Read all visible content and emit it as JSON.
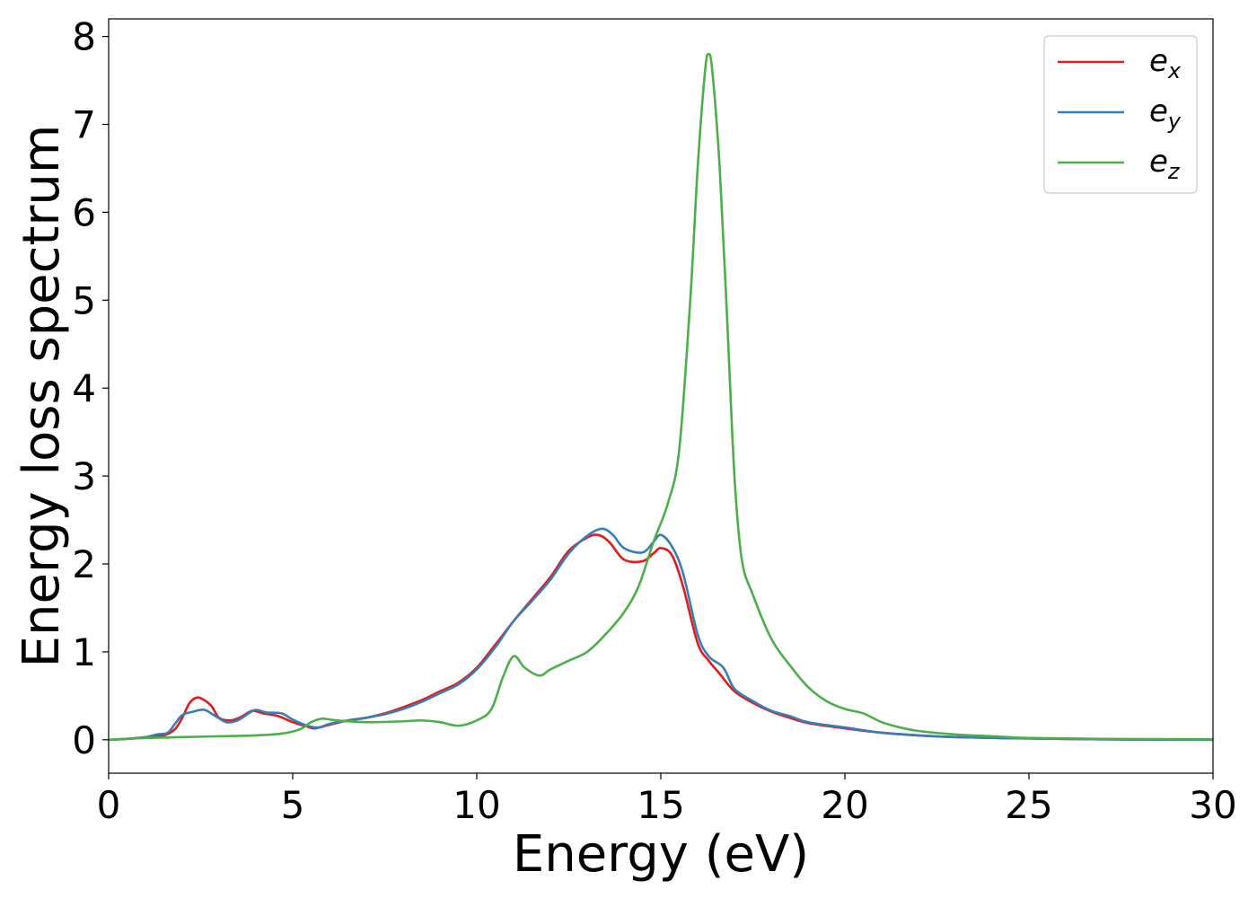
{
  "chart_data": {
    "type": "line",
    "xlabel": "Energy (eV)",
    "ylabel": "Energy loss spectrum",
    "xlim": [
      0,
      30
    ],
    "ylim": [
      -0.38,
      8.2
    ],
    "xticks": [
      0,
      5,
      10,
      15,
      20,
      25,
      30
    ],
    "xtick_labels": [
      "0",
      "5",
      "10",
      "15",
      "20",
      "25",
      "30"
    ],
    "yticks": [
      0,
      1,
      2,
      3,
      4,
      5,
      6,
      7,
      8
    ],
    "ytick_labels": [
      "0",
      "1",
      "2",
      "3",
      "4",
      "5",
      "6",
      "7",
      "8"
    ],
    "grid": false,
    "legend_position": "top-right",
    "series": [
      {
        "name": "e_x",
        "legend_base": "e",
        "legend_sub": "x",
        "color": "#e41a1c",
        "points": [
          [
            0,
            0.0
          ],
          [
            0.5,
            0.01
          ],
          [
            1.0,
            0.03
          ],
          [
            1.5,
            0.05
          ],
          [
            1.8,
            0.12
          ],
          [
            2.0,
            0.25
          ],
          [
            2.2,
            0.42
          ],
          [
            2.4,
            0.48
          ],
          [
            2.6,
            0.45
          ],
          [
            2.8,
            0.38
          ],
          [
            3.0,
            0.25
          ],
          [
            3.3,
            0.22
          ],
          [
            3.6,
            0.26
          ],
          [
            3.9,
            0.33
          ],
          [
            4.2,
            0.3
          ],
          [
            4.6,
            0.27
          ],
          [
            5.0,
            0.2
          ],
          [
            5.4,
            0.15
          ],
          [
            5.6,
            0.13
          ],
          [
            6.0,
            0.17
          ],
          [
            6.5,
            0.22
          ],
          [
            7.0,
            0.25
          ],
          [
            7.5,
            0.3
          ],
          [
            8.0,
            0.37
          ],
          [
            8.5,
            0.45
          ],
          [
            9.0,
            0.55
          ],
          [
            9.5,
            0.65
          ],
          [
            10.0,
            0.82
          ],
          [
            10.5,
            1.08
          ],
          [
            11.0,
            1.35
          ],
          [
            11.5,
            1.6
          ],
          [
            12.0,
            1.85
          ],
          [
            12.5,
            2.15
          ],
          [
            13.0,
            2.3
          ],
          [
            13.3,
            2.33
          ],
          [
            13.6,
            2.25
          ],
          [
            14.0,
            2.05
          ],
          [
            14.5,
            2.03
          ],
          [
            14.8,
            2.12
          ],
          [
            15.0,
            2.18
          ],
          [
            15.3,
            2.1
          ],
          [
            15.6,
            1.75
          ],
          [
            16.0,
            1.1
          ],
          [
            16.3,
            0.9
          ],
          [
            16.6,
            0.75
          ],
          [
            17.0,
            0.55
          ],
          [
            17.5,
            0.42
          ],
          [
            18.0,
            0.32
          ],
          [
            18.5,
            0.25
          ],
          [
            19.0,
            0.19
          ],
          [
            20.0,
            0.13
          ],
          [
            21.0,
            0.08
          ],
          [
            22.0,
            0.05
          ],
          [
            23.0,
            0.03
          ],
          [
            25.0,
            0.015
          ],
          [
            27.0,
            0.005
          ],
          [
            30.0,
            0.0
          ]
        ]
      },
      {
        "name": "e_y",
        "legend_base": "e",
        "legend_sub": "y",
        "color": "#377eb8",
        "points": [
          [
            0,
            0.0
          ],
          [
            0.5,
            0.01
          ],
          [
            1.0,
            0.03
          ],
          [
            1.3,
            0.06
          ],
          [
            1.6,
            0.08
          ],
          [
            1.8,
            0.18
          ],
          [
            2.0,
            0.28
          ],
          [
            2.3,
            0.32
          ],
          [
            2.6,
            0.34
          ],
          [
            2.9,
            0.27
          ],
          [
            3.2,
            0.2
          ],
          [
            3.5,
            0.22
          ],
          [
            3.8,
            0.3
          ],
          [
            4.0,
            0.34
          ],
          [
            4.3,
            0.31
          ],
          [
            4.7,
            0.3
          ],
          [
            5.0,
            0.23
          ],
          [
            5.4,
            0.16
          ],
          [
            5.7,
            0.14
          ],
          [
            6.0,
            0.18
          ],
          [
            6.5,
            0.22
          ],
          [
            7.0,
            0.25
          ],
          [
            7.5,
            0.29
          ],
          [
            8.0,
            0.35
          ],
          [
            8.5,
            0.43
          ],
          [
            9.0,
            0.53
          ],
          [
            9.5,
            0.63
          ],
          [
            10.0,
            0.8
          ],
          [
            10.5,
            1.05
          ],
          [
            11.0,
            1.35
          ],
          [
            11.5,
            1.58
          ],
          [
            12.0,
            1.82
          ],
          [
            12.5,
            2.12
          ],
          [
            13.0,
            2.32
          ],
          [
            13.4,
            2.4
          ],
          [
            13.7,
            2.33
          ],
          [
            14.0,
            2.18
          ],
          [
            14.5,
            2.13
          ],
          [
            14.8,
            2.25
          ],
          [
            15.0,
            2.33
          ],
          [
            15.3,
            2.2
          ],
          [
            15.6,
            1.9
          ],
          [
            16.0,
            1.2
          ],
          [
            16.3,
            0.95
          ],
          [
            16.7,
            0.82
          ],
          [
            17.0,
            0.58
          ],
          [
            17.5,
            0.44
          ],
          [
            18.0,
            0.33
          ],
          [
            18.5,
            0.27
          ],
          [
            19.0,
            0.2
          ],
          [
            20.0,
            0.14
          ],
          [
            21.0,
            0.08
          ],
          [
            22.0,
            0.05
          ],
          [
            23.0,
            0.03
          ],
          [
            25.0,
            0.015
          ],
          [
            27.0,
            0.005
          ],
          [
            30.0,
            0.0
          ]
        ]
      },
      {
        "name": "e_z",
        "legend_base": "e",
        "legend_sub": "z",
        "color": "#4daf4a",
        "points": [
          [
            0,
            0.0
          ],
          [
            1.0,
            0.02
          ],
          [
            2.0,
            0.03
          ],
          [
            3.0,
            0.04
          ],
          [
            4.0,
            0.05
          ],
          [
            4.7,
            0.07
          ],
          [
            5.2,
            0.12
          ],
          [
            5.5,
            0.2
          ],
          [
            5.8,
            0.24
          ],
          [
            6.2,
            0.22
          ],
          [
            7.0,
            0.2
          ],
          [
            8.0,
            0.21
          ],
          [
            8.5,
            0.22
          ],
          [
            9.0,
            0.2
          ],
          [
            9.5,
            0.16
          ],
          [
            10.0,
            0.22
          ],
          [
            10.4,
            0.35
          ],
          [
            10.7,
            0.7
          ],
          [
            11.0,
            0.95
          ],
          [
            11.3,
            0.82
          ],
          [
            11.7,
            0.73
          ],
          [
            12.0,
            0.8
          ],
          [
            12.5,
            0.9
          ],
          [
            13.0,
            1.0
          ],
          [
            13.5,
            1.2
          ],
          [
            14.0,
            1.45
          ],
          [
            14.4,
            1.75
          ],
          [
            14.8,
            2.25
          ],
          [
            15.2,
            2.7
          ],
          [
            15.5,
            3.3
          ],
          [
            15.8,
            5.0
          ],
          [
            16.0,
            6.5
          ],
          [
            16.2,
            7.6
          ],
          [
            16.3,
            7.8
          ],
          [
            16.4,
            7.6
          ],
          [
            16.6,
            6.5
          ],
          [
            16.8,
            4.8
          ],
          [
            17.0,
            3.0
          ],
          [
            17.2,
            2.05
          ],
          [
            17.5,
            1.65
          ],
          [
            18.0,
            1.15
          ],
          [
            18.5,
            0.85
          ],
          [
            19.0,
            0.6
          ],
          [
            19.5,
            0.44
          ],
          [
            20.0,
            0.35
          ],
          [
            20.5,
            0.3
          ],
          [
            21.0,
            0.2
          ],
          [
            21.5,
            0.14
          ],
          [
            22.0,
            0.1
          ],
          [
            23.0,
            0.06
          ],
          [
            24.0,
            0.04
          ],
          [
            25.0,
            0.02
          ],
          [
            27.0,
            0.01
          ],
          [
            30.0,
            0.005
          ]
        ]
      }
    ]
  }
}
